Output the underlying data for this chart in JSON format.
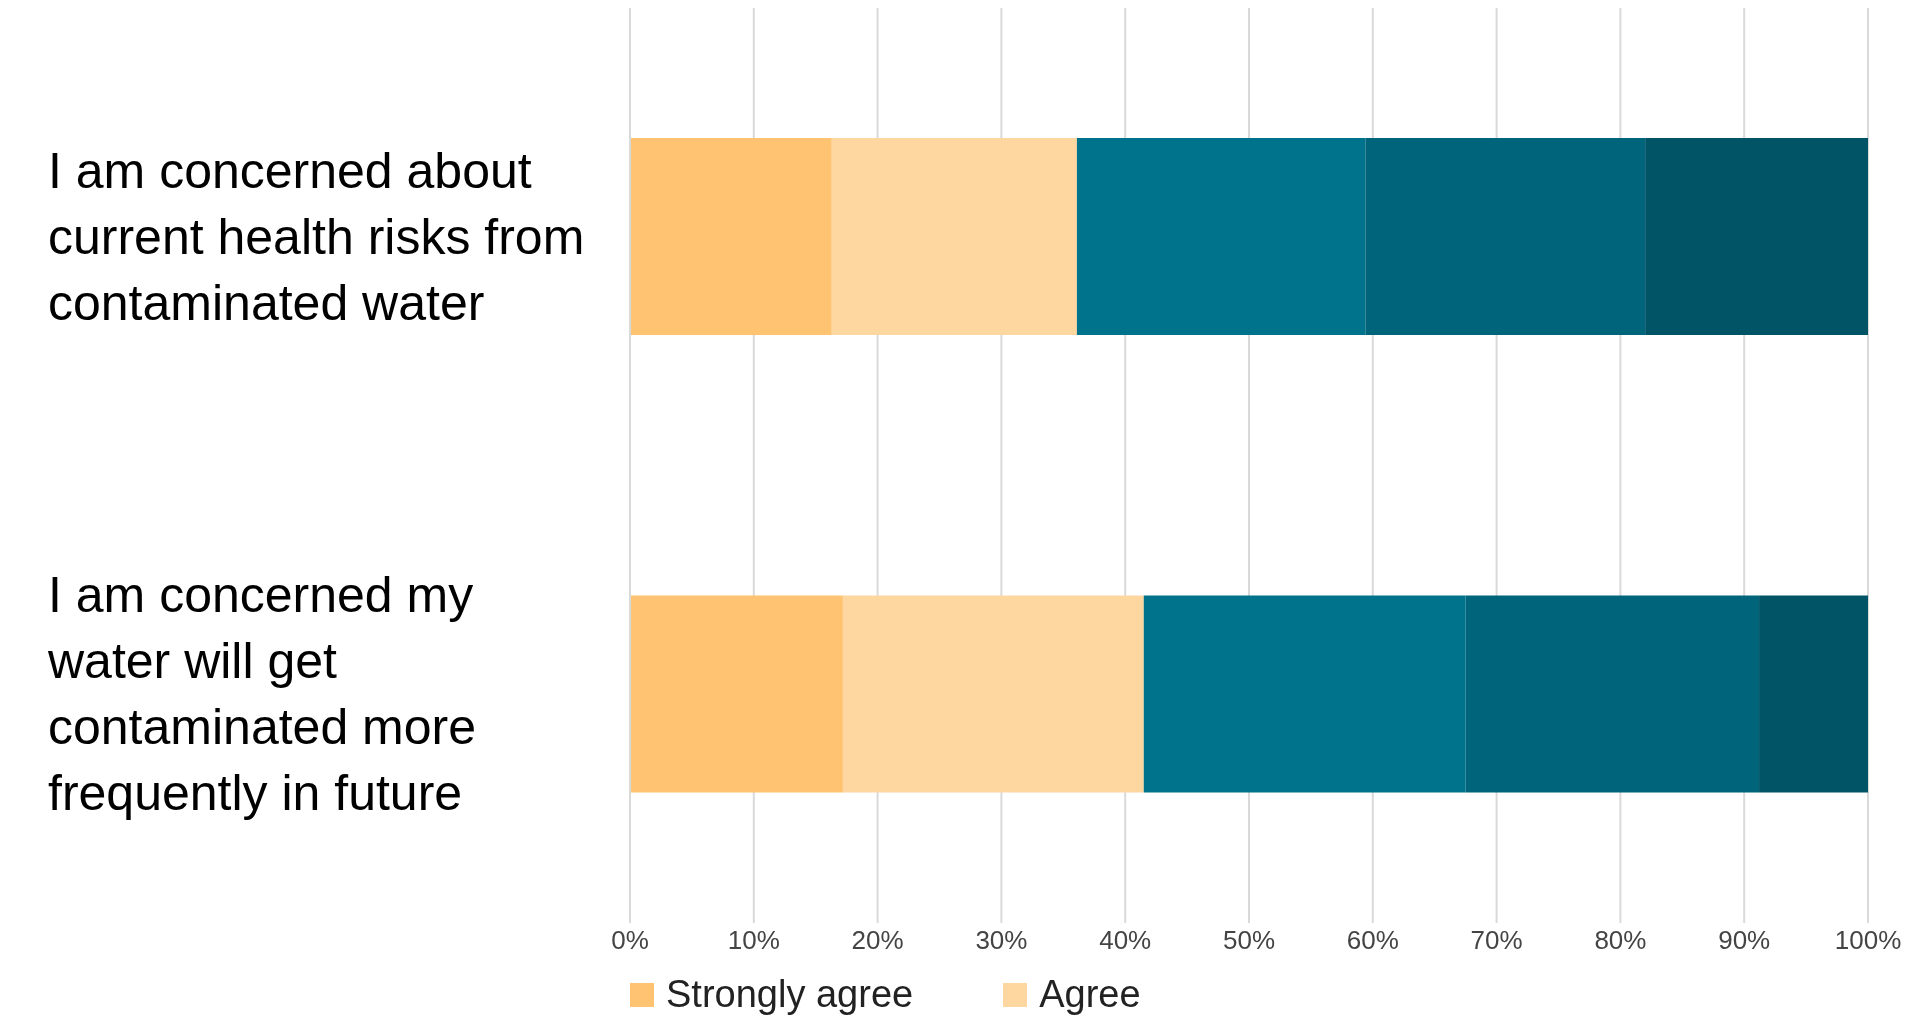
{
  "chart_data": {
    "type": "bar",
    "orientation": "horizontal",
    "stacked": true,
    "categories": [
      "I am concerned about current health risks from contaminated water",
      "I am concerned my water will get contaminated more frequently in future"
    ],
    "series": [
      {
        "name": "Strongly agree",
        "color": "#ffc372",
        "values": [
          16.3,
          17.2
        ]
      },
      {
        "name": "Agree",
        "color": "#fed6a0",
        "values": [
          19.8,
          24.3
        ]
      },
      {
        "color": "#00738c",
        "values": [
          23.3,
          26.0
        ]
      },
      {
        "color": "#00657a",
        "values": [
          22.6,
          23.7
        ]
      },
      {
        "color": "#005466",
        "values": [
          18.0,
          8.8
        ]
      }
    ],
    "xlim": [
      0,
      100
    ],
    "xticks": [
      {
        "value": 0,
        "label": "0%"
      },
      {
        "value": 10,
        "label": "10%"
      },
      {
        "value": 20,
        "label": "20%"
      },
      {
        "value": 30,
        "label": "30%"
      },
      {
        "value": 40,
        "label": "40%"
      },
      {
        "value": 50,
        "label": "50%"
      },
      {
        "value": 60,
        "label": "60%"
      },
      {
        "value": 70,
        "label": "70%"
      },
      {
        "value": 80,
        "label": "80%"
      },
      {
        "value": 90,
        "label": "90%"
      },
      {
        "value": 100,
        "label": "100%"
      }
    ],
    "grid": "x",
    "legend": "bottom"
  }
}
